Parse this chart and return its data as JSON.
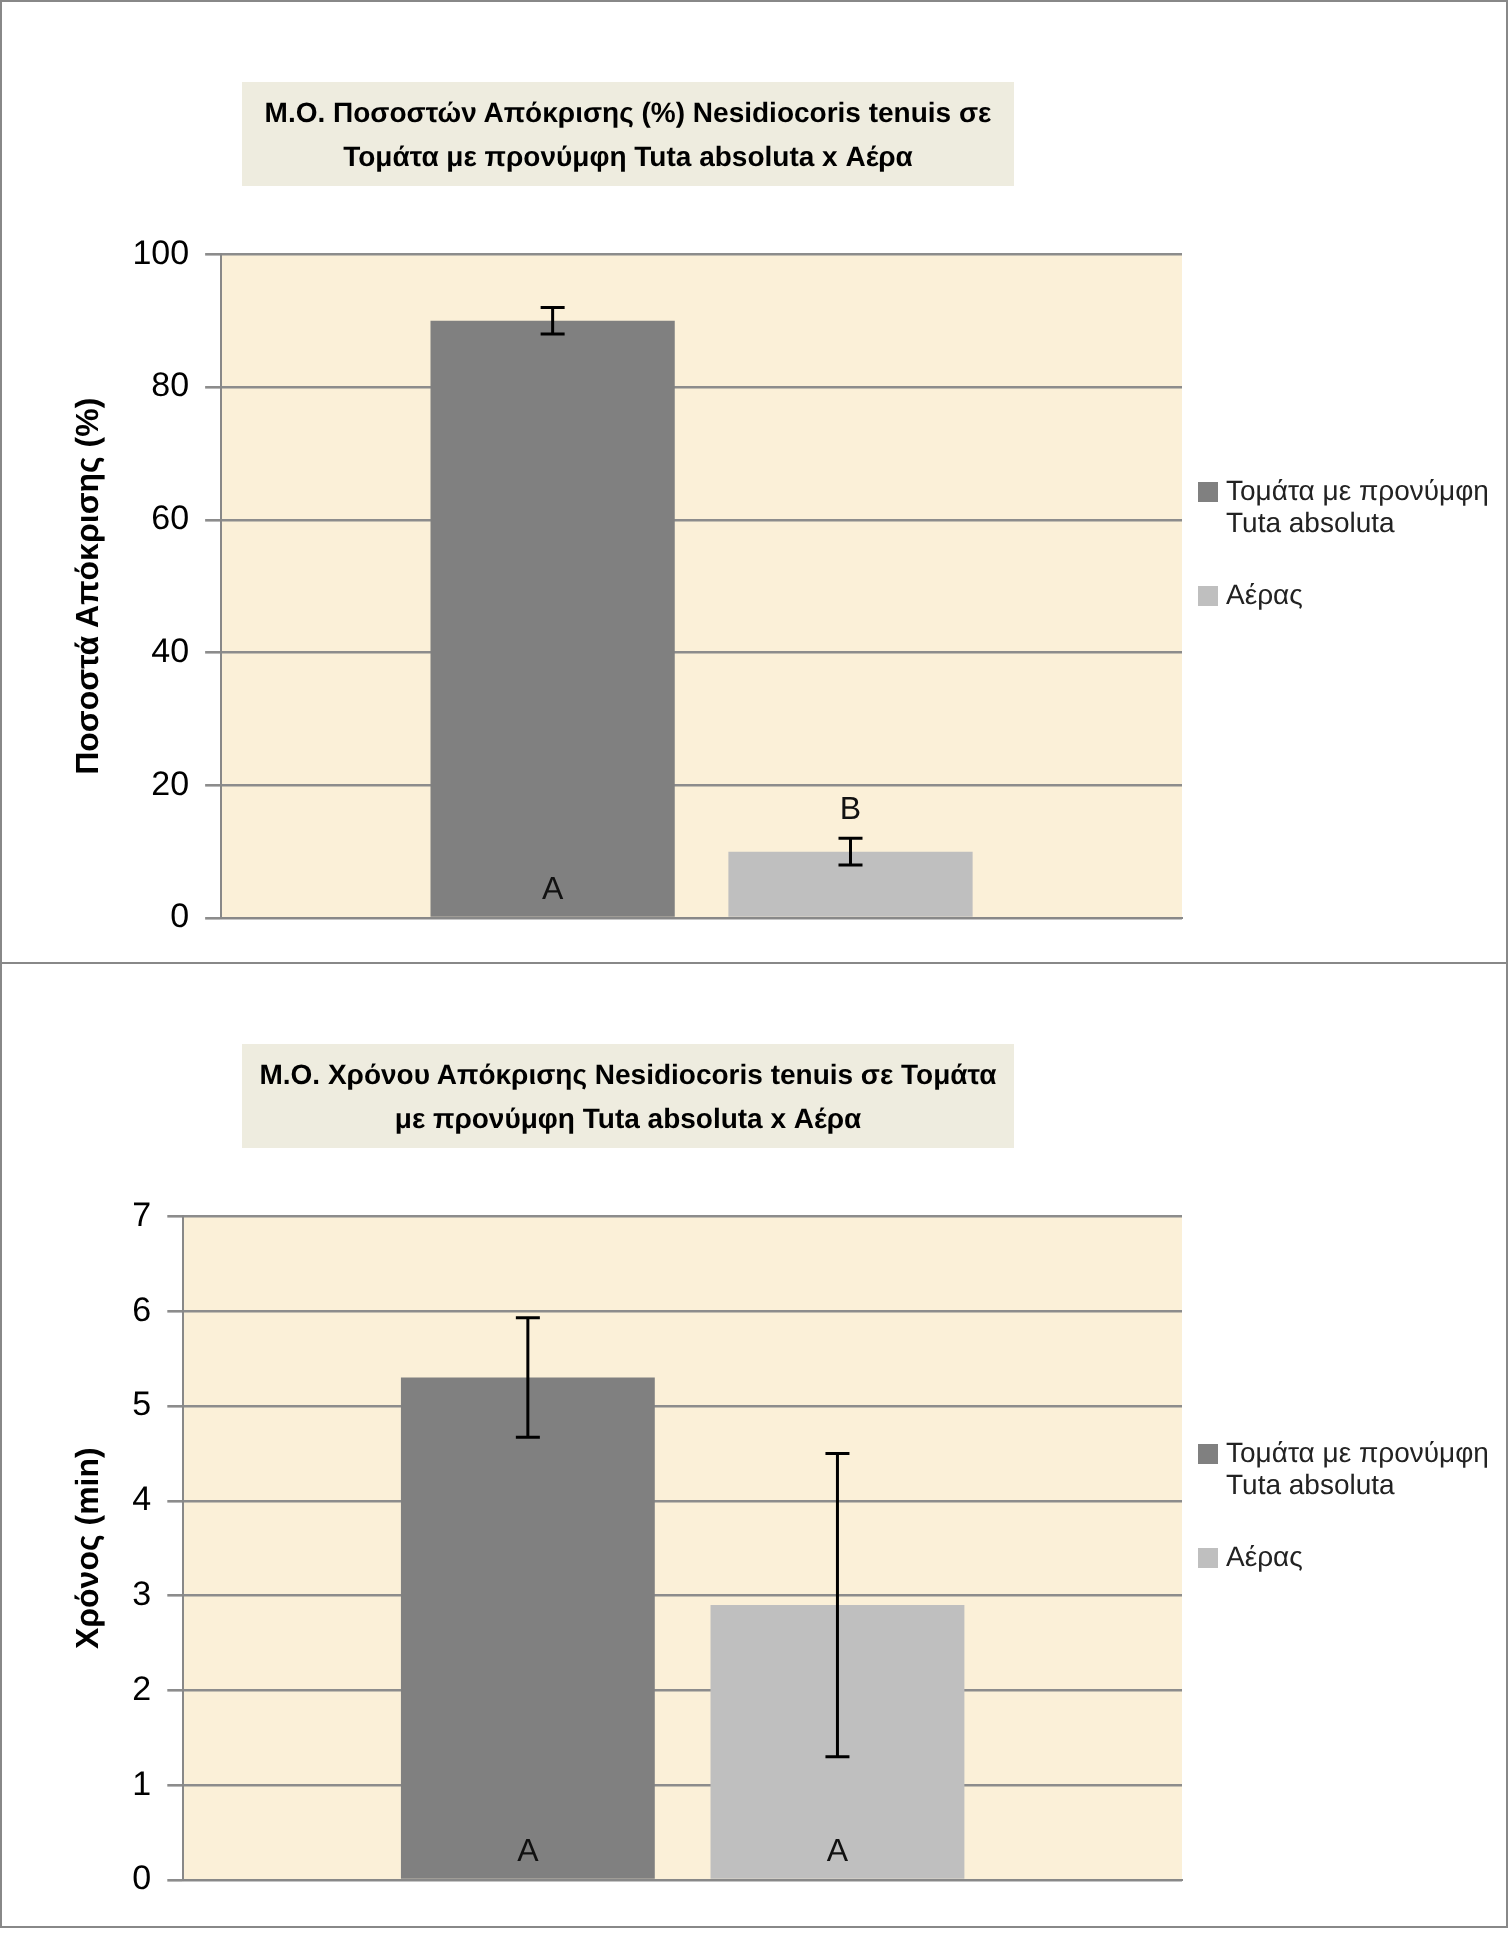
{
  "chart_data": [
    {
      "type": "bar",
      "title": "Μ.Ο. Ποσοστών Απόκρισης (%) Nesidiocoris tenuis σε Τομάτα με προνύμφη Tuta absoluta x Αέρα",
      "ylabel": "Ποσοστά Απόκρισης (%)",
      "categories": [
        null
      ],
      "series": [
        {
          "name": "Τομάτα με προνύμφη Tuta absoluta",
          "color": "#808080",
          "values": [
            90
          ],
          "errors": [
            2
          ]
        },
        {
          "name": "Αέρας",
          "color": "#bfbfbf",
          "values": [
            10
          ],
          "errors": [
            2
          ]
        }
      ],
      "ylim": [
        0,
        100
      ],
      "yticks": [
        0,
        20,
        40,
        60,
        80,
        100
      ],
      "grid": "y",
      "legend": "right",
      "tick_labels": "y",
      "annotations": [
        "A",
        "B"
      ]
    },
    {
      "type": "bar",
      "title": "Μ.Ο. Χρόνου Απόκρισης Nesidiocoris tenuis σε Τομάτα με προνύμφη Tuta absoluta x Αέρα",
      "ylabel": "Χρόνος (min)",
      "categories": [
        null
      ],
      "series": [
        {
          "name": "Τομάτα με προνύμφη Tuta absoluta",
          "color": "#808080",
          "values": [
            5.3
          ],
          "errors": [
            0.63
          ]
        },
        {
          "name": "Αέρας",
          "color": "#bfbfbf",
          "values": [
            2.9
          ],
          "errors": [
            1.6
          ]
        }
      ],
      "ylim": [
        0,
        7
      ],
      "yticks": [
        0,
        1,
        2,
        3,
        4,
        5,
        6,
        7
      ],
      "grid": "y",
      "legend": "right",
      "tick_labels": "y",
      "annotations": [
        "A",
        "A"
      ]
    }
  ]
}
